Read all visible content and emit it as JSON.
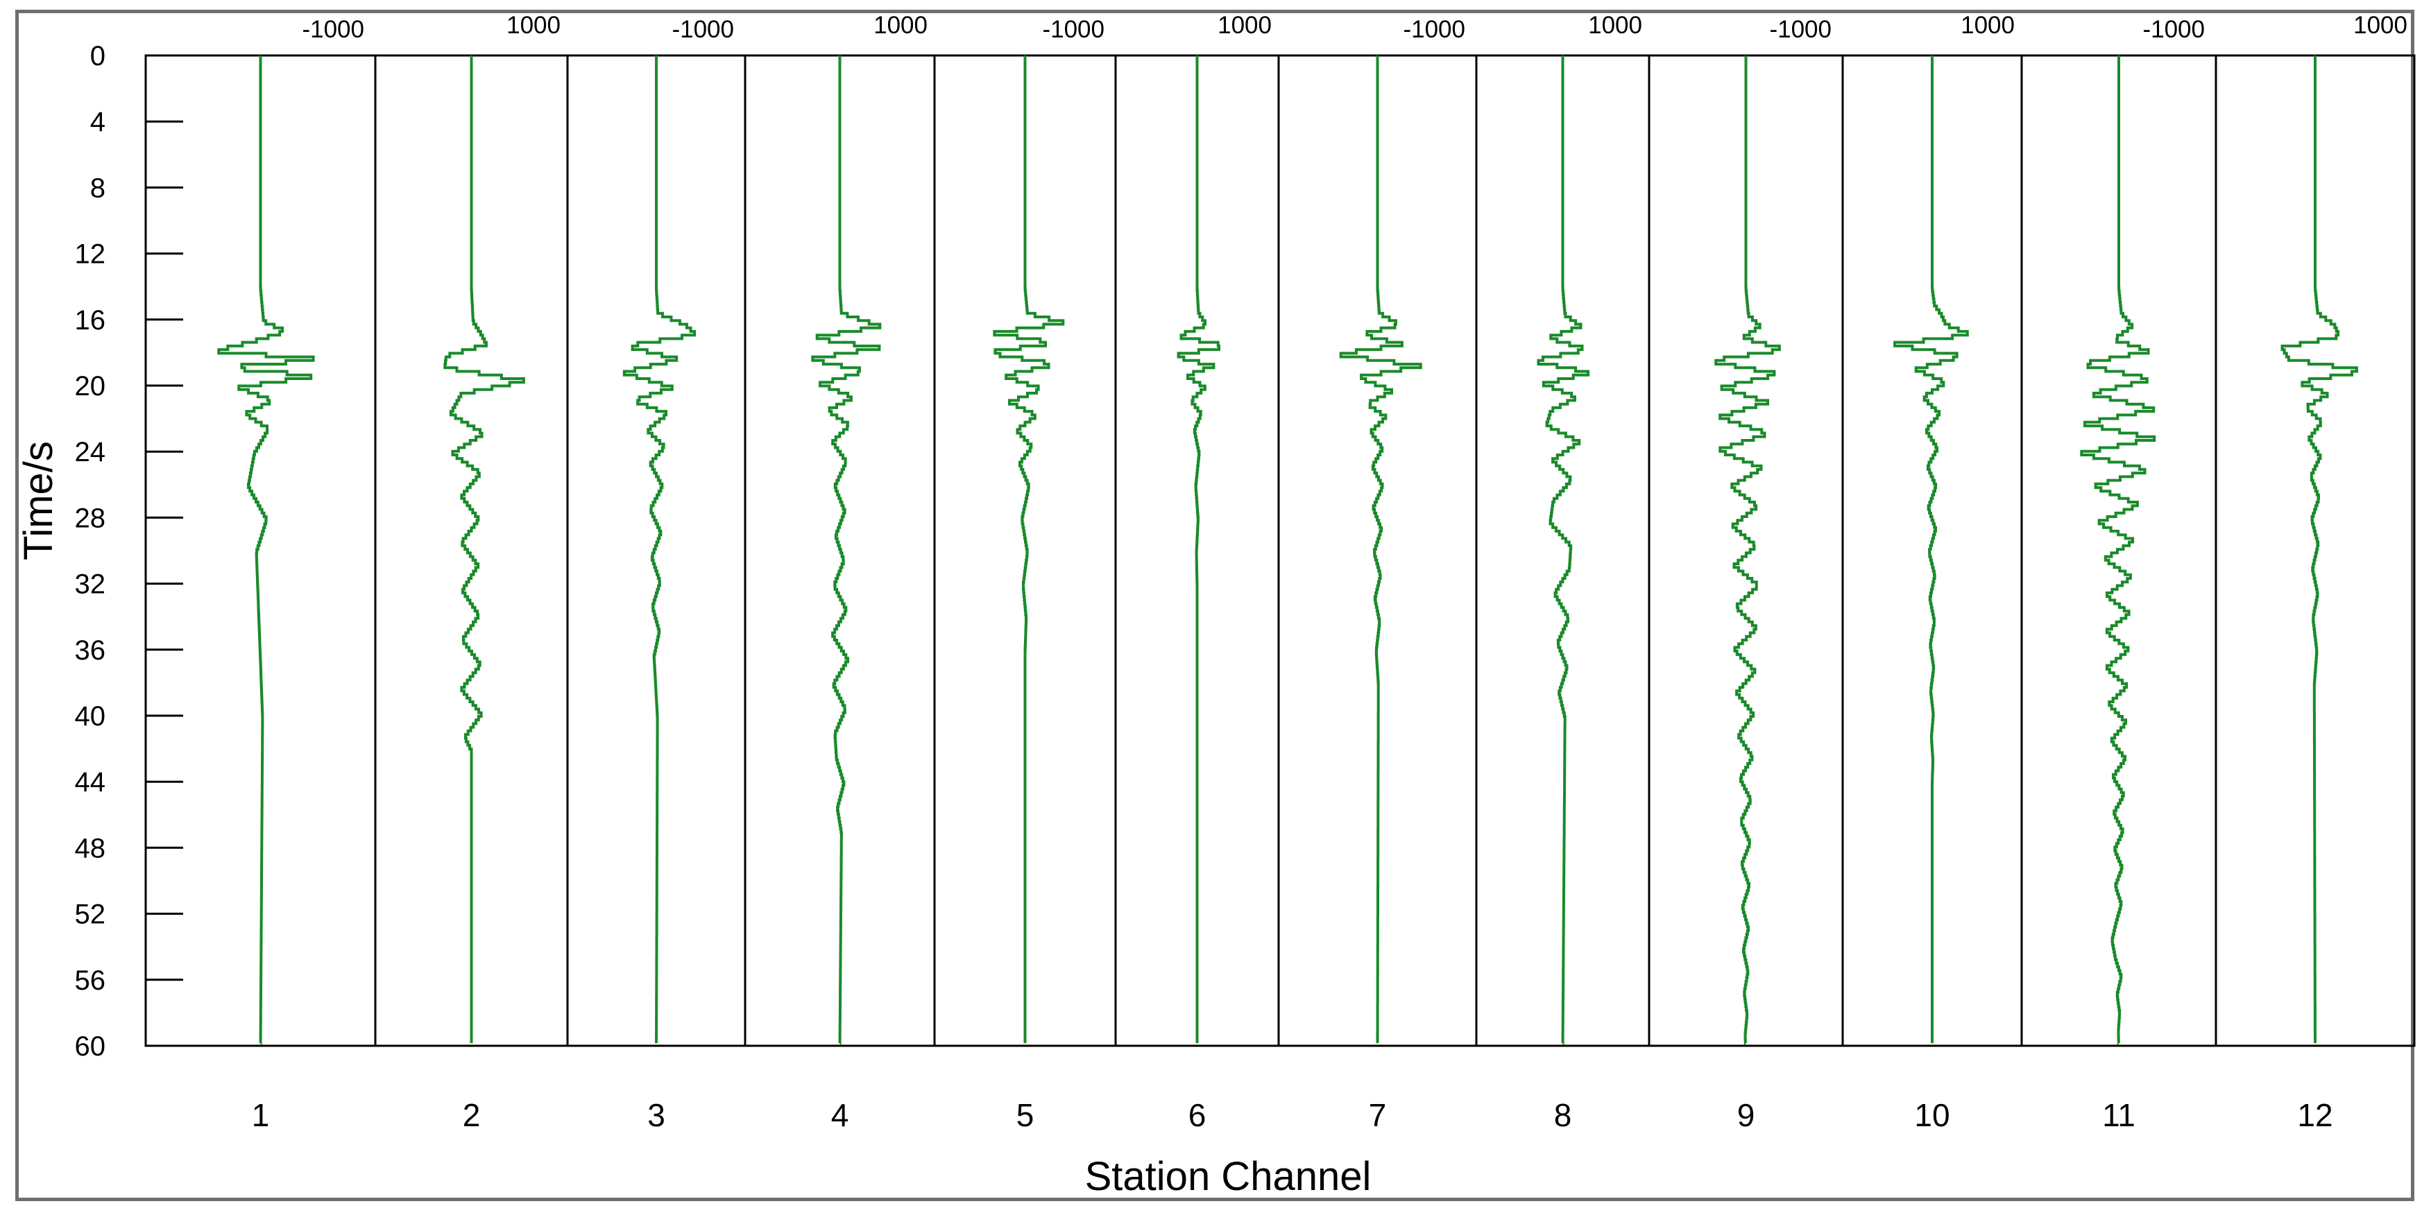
{
  "chart_data": {
    "type": "line",
    "title": "",
    "xlabel": "Station Channel",
    "ylabel": "Time/s",
    "ylim": [
      0,
      60
    ],
    "y_ticks": [
      "0",
      "4",
      "8",
      "12",
      "16",
      "20",
      "24",
      "28",
      "32",
      "36",
      "40",
      "44",
      "48",
      "52",
      "56",
      "60"
    ],
    "amplitude_range": [
      -1000,
      1000
    ],
    "amplitude_labels": [
      "-1000",
      "1000"
    ],
    "categories": [
      "1",
      "2",
      "3",
      "4",
      "5",
      "6",
      "7",
      "8",
      "9",
      "10",
      "11",
      "12"
    ],
    "grid": false,
    "trace_color": "#1a8a2a",
    "series": [
      {
        "channel": "1",
        "time": [
          0,
          14,
          16,
          16.6,
          17.2,
          17.8,
          18.3,
          18.8,
          19.3,
          20.0,
          20.8,
          21.6,
          22.5,
          24,
          26,
          28,
          30,
          40,
          60
        ],
        "amplitude": [
          0,
          0,
          30,
          250,
          -60,
          -450,
          600,
          -380,
          560,
          -220,
          120,
          -150,
          80,
          -60,
          -120,
          60,
          -40,
          20,
          0
        ]
      },
      {
        "channel": "2",
        "time": [
          0,
          14,
          16,
          16.8,
          17.4,
          18.1,
          18.8,
          19.6,
          20.4,
          21.6,
          22.8,
          24.0,
          25.2,
          26.6,
          28,
          29.4,
          30.8,
          32.3,
          33.8,
          35.3,
          36.8,
          38.3,
          39.8,
          41.2,
          42,
          60
        ],
        "amplitude": [
          0,
          0,
          20,
          120,
          180,
          -300,
          -320,
          650,
          -120,
          -250,
          150,
          -230,
          110,
          -120,
          90,
          -120,
          80,
          -110,
          90,
          -110,
          110,
          -120,
          120,
          -80,
          0,
          0
        ]
      },
      {
        "channel": "3",
        "time": [
          0,
          14,
          15.5,
          16.2,
          16.8,
          17.5,
          18.3,
          19.1,
          20.0,
          20.8,
          21.6,
          22.6,
          23.6,
          24.6,
          26,
          27.4,
          28.8,
          30.3,
          31.8,
          33.3,
          34.8,
          36.3,
          40,
          60
        ],
        "amplitude": [
          0,
          0,
          20,
          380,
          520,
          -400,
          300,
          -450,
          220,
          -300,
          150,
          -120,
          110,
          -80,
          80,
          -80,
          60,
          -60,
          50,
          -50,
          40,
          -30,
          15,
          0
        ]
      },
      {
        "channel": "4",
        "time": [
          0,
          14,
          15.5,
          16.3,
          17.0,
          17.6,
          18.3,
          19.0,
          19.8,
          20.6,
          21.4,
          22.3,
          23.3,
          24.5,
          26,
          27.5,
          29,
          30.5,
          32,
          33.5,
          35,
          36.5,
          38,
          39.5,
          41,
          42.5,
          44,
          45.5,
          47,
          60
        ],
        "amplitude": [
          0,
          0,
          20,
          500,
          -350,
          480,
          -380,
          320,
          -240,
          170,
          -150,
          120,
          -90,
          80,
          -60,
          60,
          -50,
          50,
          -70,
          80,
          -90,
          100,
          -80,
          70,
          -60,
          -40,
          50,
          -30,
          20,
          0
        ]
      },
      {
        "channel": "5",
        "time": [
          0,
          14,
          15.5,
          16.1,
          16.7,
          17.3,
          17.9,
          18.6,
          19.3,
          20.1,
          20.9,
          21.7,
          22.6,
          23.6,
          24.6,
          26,
          28,
          30,
          32,
          34,
          36,
          60
        ],
        "amplitude": [
          0,
          0,
          30,
          520,
          -420,
          380,
          -500,
          400,
          -280,
          220,
          -200,
          150,
          -110,
          90,
          -70,
          50,
          -40,
          30,
          -25,
          15,
          0,
          0
        ]
      },
      {
        "channel": "6",
        "time": [
          0,
          14,
          15.5,
          16.2,
          16.9,
          17.5,
          18.1,
          18.7,
          19.3,
          20.0,
          20.8,
          21.6,
          22.6,
          24,
          26,
          28,
          30,
          32,
          60
        ],
        "amplitude": [
          0,
          0,
          20,
          140,
          -280,
          450,
          -350,
          240,
          -160,
          120,
          -90,
          60,
          -40,
          30,
          -20,
          15,
          -10,
          0,
          0
        ]
      },
      {
        "channel": "7",
        "time": [
          0,
          14,
          15.5,
          16.2,
          16.8,
          17.4,
          18.0,
          18.7,
          19.4,
          20.2,
          21.0,
          21.8,
          22.7,
          23.7,
          24.8,
          26,
          27.3,
          28.6,
          30,
          31.4,
          32.8,
          34.2,
          36,
          38,
          60
        ],
        "amplitude": [
          0,
          0,
          20,
          260,
          -180,
          300,
          -480,
          500,
          -230,
          180,
          -120,
          100,
          -80,
          60,
          -60,
          60,
          -50,
          45,
          -40,
          35,
          -30,
          25,
          -15,
          10,
          0
        ]
      },
      {
        "channel": "8",
        "time": [
          0,
          14,
          15.6,
          16.3,
          17.0,
          17.7,
          18.4,
          19.1,
          19.8,
          20.6,
          21.4,
          22.3,
          23.3,
          24.4,
          25.6,
          26.9,
          28.2,
          29.6,
          31,
          32.5,
          34,
          35.5,
          37,
          38.5,
          40,
          60
        ],
        "amplitude": [
          0,
          0,
          30,
          250,
          -200,
          340,
          -420,
          380,
          -260,
          200,
          -160,
          -220,
          230,
          -140,
          120,
          -130,
          -170,
          110,
          90,
          -110,
          80,
          -70,
          60,
          -50,
          30,
          0
        ]
      },
      {
        "channel": "9",
        "time": [
          0,
          14,
          15.6,
          16.3,
          17.0,
          17.7,
          18.4,
          19.2,
          20.0,
          20.9,
          21.8,
          22.8,
          23.8,
          24.9,
          26,
          27.2,
          28.4,
          29.6,
          30.8,
          32,
          33.3,
          34.6,
          35.9,
          37.2,
          38.5,
          39.8,
          41.1,
          42.4,
          43.7,
          45,
          46.3,
          47.6,
          48.9,
          50.2,
          51.5,
          52.8,
          54.1,
          55.4,
          56.7,
          58,
          59.3,
          60
        ],
        "amplitude": [
          0,
          0,
          30,
          170,
          -40,
          470,
          -440,
          400,
          -300,
          260,
          -320,
          270,
          -330,
          200,
          -180,
          140,
          -160,
          120,
          -140,
          150,
          -120,
          130,
          -140,
          110,
          -110,
          90,
          -90,
          80,
          -70,
          60,
          -60,
          50,
          -50,
          40,
          -40,
          30,
          -30,
          25,
          -20,
          15,
          -10,
          0
        ]
      },
      {
        "channel": "10",
        "time": [
          0,
          14,
          15,
          15.6,
          16.2,
          16.8,
          17.4,
          18.1,
          18.9,
          19.7,
          20.6,
          21.6,
          22.6,
          23.7,
          24.8,
          26,
          27.3,
          28.6,
          30,
          31.4,
          32.8,
          34.2,
          35.6,
          37,
          38.4,
          39.8,
          41.2,
          42.6,
          44,
          60
        ],
        "amplitude": [
          0,
          0,
          30,
          120,
          180,
          500,
          -520,
          400,
          -220,
          180,
          -120,
          100,
          -80,
          70,
          -60,
          50,
          -50,
          45,
          -40,
          35,
          -30,
          30,
          -25,
          20,
          -20,
          15,
          -10,
          10,
          0,
          0
        ]
      },
      {
        "channel": "11",
        "time": [
          0,
          14,
          15.5,
          16.3,
          17.1,
          17.8,
          18.6,
          19.5,
          20.4,
          21.3,
          22.2,
          23.1,
          24.0,
          25.0,
          26.0,
          27.1,
          28.2,
          29.3,
          30.4,
          31.5,
          32.6,
          33.7,
          34.8,
          35.9,
          37.0,
          38.1,
          39.2,
          40.3,
          41.4,
          42.5,
          43.6,
          44.7,
          45.8,
          46.9,
          48,
          49.1,
          50.2,
          51.3,
          52.4,
          53.5,
          54.6,
          55.7,
          56.8,
          57.9,
          59,
          60
        ],
        "amplitude": [
          0,
          0,
          30,
          160,
          -60,
          370,
          -460,
          400,
          -350,
          450,
          -420,
          420,
          -460,
          360,
          -300,
          240,
          -250,
          180,
          -170,
          150,
          -150,
          130,
          -150,
          120,
          -150,
          100,
          -120,
          90,
          -90,
          80,
          -70,
          60,
          -60,
          50,
          -50,
          40,
          -40,
          30,
          -30,
          -80,
          -40,
          30,
          -20,
          10,
          -5,
          0
        ]
      },
      {
        "channel": "12",
        "time": [
          0,
          14,
          15.5,
          16.2,
          16.9,
          17.6,
          18.3,
          19.0,
          19.7,
          20.4,
          21.2,
          22.1,
          23.1,
          24.2,
          25.4,
          26.7,
          28,
          29.5,
          31,
          32.5,
          34,
          36,
          38,
          60
        ],
        "amplitude": [
          0,
          0,
          30,
          220,
          280,
          -380,
          -300,
          580,
          -200,
          160,
          -110,
          80,
          -70,
          60,
          -50,
          45,
          -40,
          35,
          -30,
          30,
          -25,
          20,
          -10,
          0
        ]
      }
    ]
  }
}
